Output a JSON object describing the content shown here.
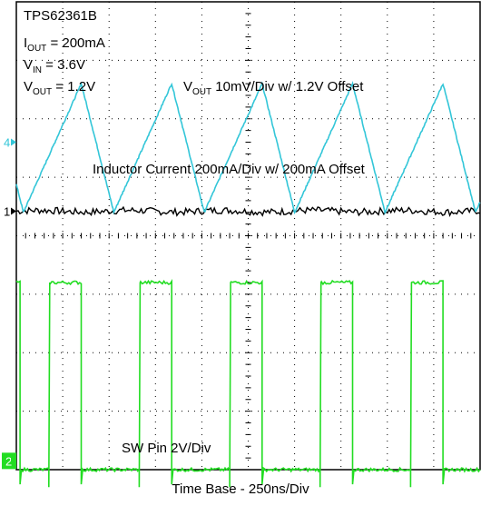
{
  "chart_data": {
    "type": "line",
    "title": "",
    "xlabel": "Time Base - 250ns/Div",
    "ylabel": "",
    "grid": true,
    "divisions": {
      "x": 10,
      "y": 8
    },
    "annotations": {
      "device": "TPS62361B",
      "iout": {
        "prefix": "I",
        "sub": "OUT",
        "rest": " = 200mA"
      },
      "vin": {
        "prefix": "V",
        "sub": "IN",
        "rest": " = 3.6V"
      },
      "vout": {
        "prefix": "V",
        "sub": "OUT",
        "rest": " = 1.2V"
      },
      "vout_scale": {
        "prefix": "V",
        "sub": "OUT",
        "rest": " 10mV/Div w/ 1.2V Offset"
      },
      "inductor_scale": "Inductor Current 200mA/Div w/ 200mA Offset",
      "sw_scale": "SW Pin 2V/Div"
    },
    "series": [
      {
        "marker": "1",
        "color": "#000000",
        "level_div": 4.42,
        "ripple_div": 0.12
      },
      {
        "marker": "4",
        "color": "#33c6d8",
        "period_div": 1.95,
        "peak_div": 1.0,
        "peak_times_div": [
          1.4,
          3.35,
          5.3,
          7.25,
          9.2
        ],
        "high_div": 6.6,
        "low_div": 4.4,
        "marker_level_div": 5.6
      },
      {
        "marker": "2",
        "color": "#22dd22",
        "period_div": 1.95,
        "high_div": 3.2,
        "low_div": 0.0,
        "rising_times_div": [
          0.7,
          2.65,
          4.6,
          6.55,
          8.5
        ],
        "falling_times_div": [
          1.4,
          3.35,
          5.3,
          7.25,
          9.2
        ]
      }
    ]
  }
}
